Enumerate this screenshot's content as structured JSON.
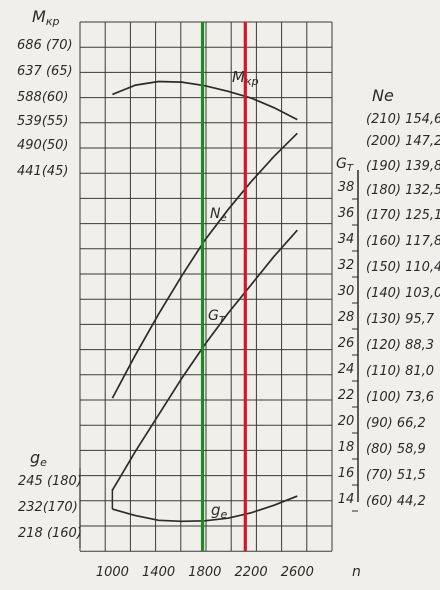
{
  "chart_data": {
    "type": "line",
    "title": "",
    "xlabel": "n",
    "x_ticks": [
      "1000",
      "1400",
      "1800",
      "2200",
      "2600"
    ],
    "x_range": [
      720,
      2900
    ],
    "left_axis": {
      "mkr_label": "M",
      "mkr_sub": "кр",
      "mkr_ticks": [
        "686 (70)",
        "637 (65)",
        "588(60)",
        "539(55)",
        "490(50)",
        "441(45)"
      ],
      "mkr_values": [
        686,
        637,
        588,
        539,
        490,
        441
      ],
      "ge_label": "g",
      "ge_sub": "e",
      "ge_ticks": [
        "245 (180)",
        "232(170)",
        "218 (160)"
      ]
    },
    "right_axis": {
      "ne_label": "Ne",
      "ne_ticks": [
        "(210) 154,6",
        "(200) 147,2",
        "(190) 139,8",
        "(180) 132,5",
        "(170) 125,1",
        "(160) 117,8",
        "(150) 110,4",
        "(140) 103,0",
        "(130) 95,7",
        "(120) 88,3",
        "(110) 81,0",
        "(100) 73,6",
        "(90) 66,2",
        "(80) 58,9",
        "(70) 51,5",
        "(60) 44,2"
      ],
      "ne_values": [
        210,
        200,
        190,
        180,
        170,
        160,
        150,
        140,
        130,
        120,
        110,
        100,
        90,
        80,
        70,
        60
      ],
      "gt_label": "G",
      "gt_sub": "T",
      "gt_ticks": [
        "38",
        "36",
        "34",
        "32",
        "30",
        "28",
        "26",
        "24",
        "22",
        "20",
        "18",
        "16",
        "14"
      ],
      "gt_values": [
        38,
        36,
        34,
        32,
        30,
        28,
        26,
        24,
        22,
        20,
        18,
        16,
        14
      ]
    },
    "series": [
      {
        "name": "Mкр",
        "label": "M",
        "label_sub": "кр",
        "axis": "mkr",
        "x": [
          1000,
          1200,
          1400,
          1600,
          1800,
          2000,
          2200,
          2400,
          2600
        ],
        "values": [
          588,
          606,
          613,
          612,
          605,
          594,
          581,
          562,
          539
        ]
      },
      {
        "name": "Ne",
        "label": "N",
        "label_sub": "e",
        "axis": "ne",
        "x": [
          1000,
          1200,
          1400,
          1600,
          1800,
          2000,
          2200,
          2400,
          2600
        ],
        "values": [
          100,
          117,
          133,
          148,
          162,
          174,
          185,
          195,
          204
        ]
      },
      {
        "name": "GT",
        "label": "G",
        "label_sub": "T",
        "axis": "gt",
        "x": [
          1000,
          1200,
          1400,
          1600,
          1800,
          2000,
          2200,
          2400,
          2600
        ],
        "values": [
          14.6,
          17.6,
          20.4,
          23.2,
          25.8,
          28.2,
          30.4,
          32.6,
          34.6
        ]
      },
      {
        "name": "ge",
        "label": "g",
        "label_sub": "e",
        "axis": "ge",
        "x": [
          1000,
          1200,
          1400,
          1600,
          1800,
          2000,
          2200,
          2400,
          2600
        ],
        "values": [
          168.8,
          166.3,
          164.5,
          164.1,
          164.3,
          165.3,
          167.4,
          170.3,
          173.8
        ]
      }
    ],
    "markers": [
      {
        "x": 1780,
        "color": "#1f8a1f"
      },
      {
        "x": 2150,
        "color": "#d6142b"
      }
    ],
    "grid": true
  }
}
